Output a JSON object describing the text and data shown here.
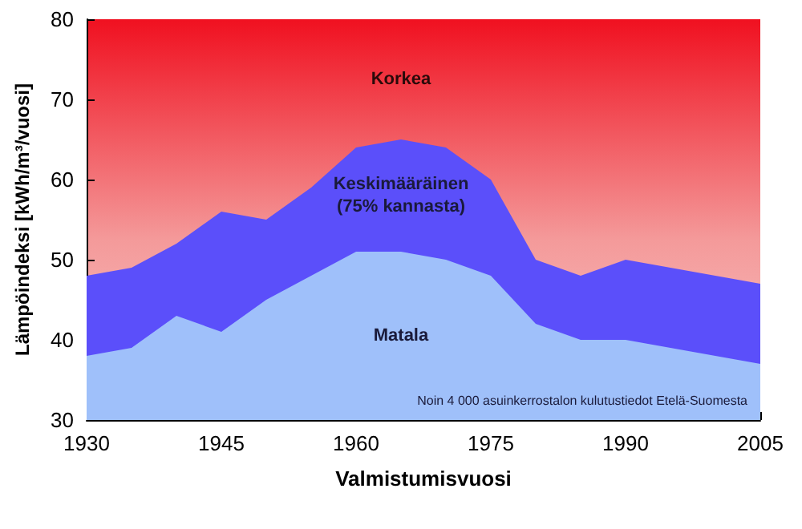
{
  "chart_data": {
    "type": "area",
    "xlabel": "Valmistumisvuosi",
    "ylabel": "Lämpöindeksi [kWh/m³/vuosi]",
    "x": [
      1930,
      1935,
      1940,
      1945,
      1950,
      1955,
      1960,
      1965,
      1970,
      1975,
      1980,
      1985,
      1990,
      1995,
      2000,
      2005
    ],
    "series": [
      {
        "name": "Matala",
        "color": "#9fc0fa",
        "values": [
          38,
          39,
          43,
          41,
          45,
          48,
          51,
          51,
          50,
          48,
          42,
          40,
          40,
          39,
          38,
          37
        ]
      },
      {
        "name": "Keskimääräinen\n(75% kannasta)",
        "color": "#5b4ffa",
        "values": [
          48,
          49,
          52,
          56,
          55,
          59,
          64,
          65,
          64,
          60,
          50,
          48,
          50,
          49,
          48,
          47
        ]
      }
    ],
    "xlim": [
      1930,
      2005
    ],
    "xticks": [
      1930,
      1945,
      1960,
      1975,
      1990,
      2005
    ],
    "ylim": [
      30,
      80
    ],
    "yticks": [
      30,
      40,
      50,
      60,
      70,
      80
    ],
    "annotations": [
      "Korkea",
      "Noin 4 000 asuinkerrostalon kulutustiedot Etelä-Suomesta"
    ]
  }
}
